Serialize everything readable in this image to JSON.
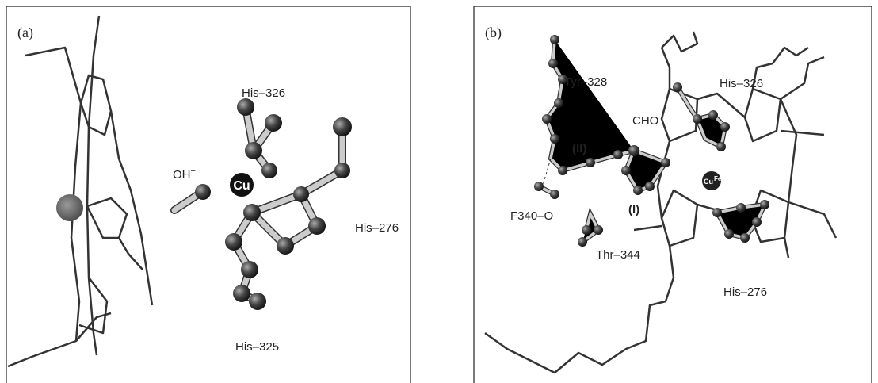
{
  "panel_a": {
    "label": "(a)",
    "his_326": "His–326",
    "hydroxide": "OH",
    "hydroxide_charge": "−",
    "copper": "Cu",
    "his_276": "His–276",
    "his_325": "His–325"
  },
  "panel_b": {
    "label": "(b)",
    "tyr_328": "Tyr–328",
    "his_326": "His–326",
    "cho": "CHO",
    "site_2": "(II)",
    "site_1": "(I)",
    "f340": "F340–O",
    "thr_344": "Thr–344",
    "his_276": "His–276",
    "copper": "Cu",
    "iron": "Fe"
  }
}
